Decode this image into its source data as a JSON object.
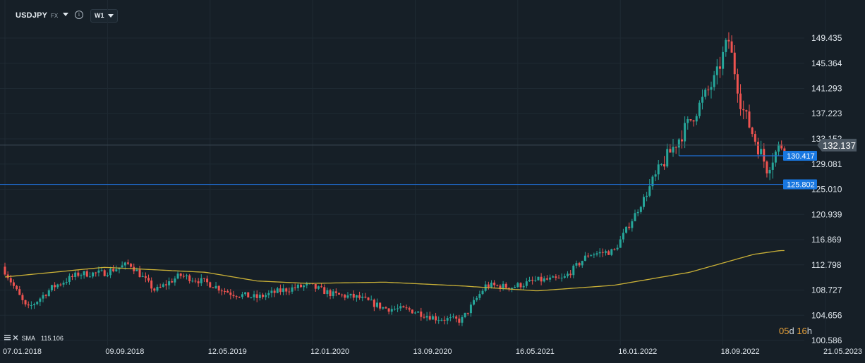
{
  "header": {
    "symbol": "USDJPY",
    "market": "FX",
    "info_glyph": "i",
    "timeframe": "W1"
  },
  "indicator": {
    "name": "SMA",
    "value": "115.106"
  },
  "countdown": {
    "days": "05",
    "days_unit": "d",
    "hours": "16",
    "hours_unit": "h"
  },
  "colors": {
    "background": "#161f27",
    "up": "#26a69a",
    "down": "#ef5350",
    "sma": "#c9b037",
    "hline": "#1f6fd6",
    "label_bg": "#1877e0",
    "price_label_bg": "#4a5661"
  },
  "chart_data": {
    "type": "candlestick",
    "ylim": [
      100.586,
      151.5
    ],
    "y_ticks": [
      "149.435",
      "145.364",
      "141.293",
      "137.223",
      "133.152",
      "129.081",
      "125.010",
      "120.939",
      "116.869",
      "112.798",
      "108.727",
      "104.656",
      "100.586"
    ],
    "x_ticks": [
      "07.01.2018",
      "09.09.2018",
      "12.05.2019",
      "12.01.2020",
      "13.09.2020",
      "16.05.2021",
      "16.01.2022",
      "18.09.2022",
      "21.05.2023"
    ],
    "current_price": "132.137",
    "horizontal_lines": [
      {
        "value": 130.417,
        "label": "130.417",
        "start_date": "2022-06-05"
      },
      {
        "value": 125.802,
        "label": "125.802",
        "start_date": null
      }
    ],
    "series": [
      {
        "type": "candlestick",
        "approx_weekly_closes": {
          "2018-01": 112.5,
          "2018-03": 105.6,
          "2018-05": 109.2,
          "2018-07": 111.3,
          "2018-09": 111.5,
          "2018-11": 113.0,
          "2019-01": 108.6,
          "2019-03": 111.1,
          "2019-05": 110.0,
          "2019-07": 108.2,
          "2019-09": 107.5,
          "2019-11": 108.7,
          "2020-01": 109.5,
          "2020-03": 108.0,
          "2020-05": 107.5,
          "2020-07": 105.8,
          "2020-09": 105.5,
          "2020-11": 104.2,
          "2021-01": 103.8,
          "2021-03": 109.5,
          "2021-05": 109.2,
          "2021-07": 110.3,
          "2021-09": 110.5,
          "2021-11": 114.5,
          "2022-01": 115.0,
          "2022-03": 122.0,
          "2022-05": 129.5,
          "2022-07": 136.0,
          "2022-09": 143.0,
          "2022-10": 149.4,
          "2022-11": 138.5,
          "2022-12": 133.5,
          "2023-01": 128.5,
          "2023-02": 132.1
        }
      },
      {
        "type": "line",
        "name": "SMA",
        "approx_values": {
          "2018-01": 110.8,
          "2018-09": 112.4,
          "2019-05": 111.6,
          "2019-09": 110.2,
          "2020-01": 109.8,
          "2020-07": 110.0,
          "2021-01": 109.4,
          "2021-07": 108.6,
          "2022-01": 109.5,
          "2022-07": 111.6,
          "2022-12": 114.5,
          "2023-02": 115.1
        }
      }
    ]
  }
}
